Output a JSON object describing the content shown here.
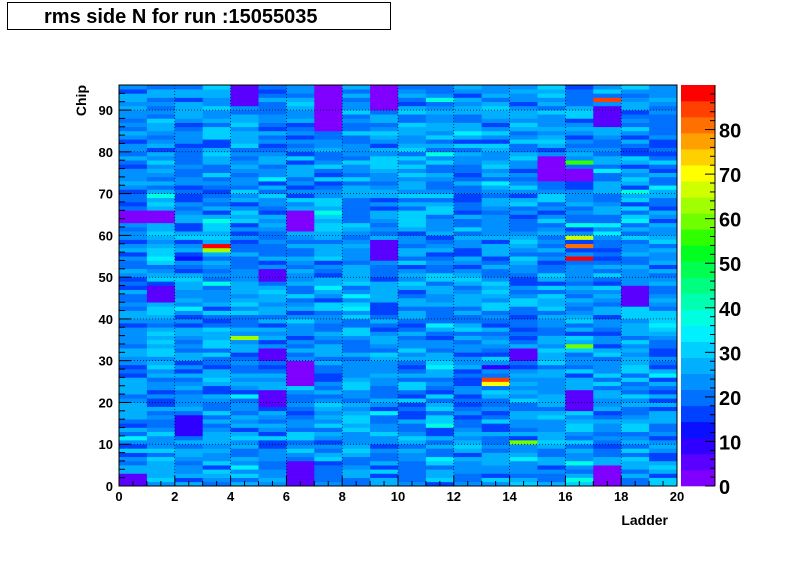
{
  "title": "rms side N for run :15055035",
  "chart_data": {
    "type": "heatmap",
    "title": "rms side N for run :15055035",
    "xlabel": "Ladder",
    "ylabel": "Chip",
    "xlim": [
      0,
      20
    ],
    "ylim": [
      0,
      96
    ],
    "x_bins": 20,
    "y_bins": 96,
    "x_ticks": [
      0,
      2,
      4,
      6,
      8,
      10,
      12,
      14,
      16,
      18,
      20
    ],
    "y_ticks": [
      0,
      10,
      20,
      30,
      40,
      50,
      60,
      70,
      80,
      90
    ],
    "colorbar_ticks": [
      0,
      10,
      20,
      30,
      40,
      50,
      60,
      70,
      80
    ],
    "z_range": [
      0,
      90
    ],
    "grid": true,
    "palette": [
      "#7f00ff",
      "#5a00ff",
      "#2f00ff",
      "#0a10ff",
      "#0040ff",
      "#0070ff",
      "#0090ff",
      "#00b0ff",
      "#00d0ff",
      "#00f0ff",
      "#00ffe0",
      "#00ffb0",
      "#00ff80",
      "#00ff50",
      "#00ff20",
      "#30ff00",
      "#70ff00",
      "#a0ff00",
      "#d0ff00",
      "#ffff00",
      "#ffd000",
      "#ffa000",
      "#ff7000",
      "#ff4000",
      "#ff0000"
    ],
    "column_base_values": [
      22,
      24,
      21,
      24,
      23,
      22,
      23,
      24,
      25,
      23,
      24,
      24,
      22,
      23,
      23,
      24,
      24,
      23,
      24,
      23
    ],
    "low_regions": [
      {
        "ladder_from": 0,
        "ladder_to": 1,
        "chip_from": 0,
        "chip_to": 3,
        "value": 4
      },
      {
        "ladder_from": 0,
        "ladder_to": 2,
        "chip_from": 63,
        "chip_to": 66,
        "value": 3
      },
      {
        "ladder_from": 1,
        "ladder_to": 2,
        "chip_from": 44,
        "chip_to": 48,
        "value": 5
      },
      {
        "ladder_from": 2,
        "ladder_to": 3,
        "chip_from": 12,
        "chip_to": 17,
        "value": 8
      },
      {
        "ladder_from": 4,
        "ladder_to": 5,
        "chip_from": 91,
        "chip_to": 96,
        "value": 6
      },
      {
        "ladder_from": 5,
        "ladder_to": 6,
        "chip_from": 19,
        "chip_to": 23,
        "value": 4
      },
      {
        "ladder_from": 5,
        "ladder_to": 6,
        "chip_from": 49,
        "chip_to": 52,
        "value": 4
      },
      {
        "ladder_from": 5,
        "ladder_to": 6,
        "chip_from": 30,
        "chip_to": 33,
        "value": 6
      },
      {
        "ladder_from": 6,
        "ladder_to": 7,
        "chip_from": 61,
        "chip_to": 66,
        "value": 3
      },
      {
        "ladder_from": 6,
        "ladder_to": 7,
        "chip_from": 24,
        "chip_to": 30,
        "value": 3
      },
      {
        "ladder_from": 6,
        "ladder_to": 7,
        "chip_from": 0,
        "chip_to": 6,
        "value": 4
      },
      {
        "ladder_from": 7,
        "ladder_to": 8,
        "chip_from": 85,
        "chip_to": 96,
        "value": 2
      },
      {
        "ladder_from": 9,
        "ladder_to": 10,
        "chip_from": 90,
        "chip_to": 96,
        "value": 3
      },
      {
        "ladder_from": 9,
        "ladder_to": 10,
        "chip_from": 54,
        "chip_to": 59,
        "value": 4
      },
      {
        "ladder_from": 15,
        "ladder_to": 16,
        "chip_from": 73,
        "chip_to": 79,
        "value": 3
      },
      {
        "ladder_from": 16,
        "ladder_to": 17,
        "chip_from": 73,
        "chip_to": 76,
        "value": 3
      },
      {
        "ladder_from": 16,
        "ladder_to": 17,
        "chip_from": 18,
        "chip_to": 23,
        "value": 4
      },
      {
        "ladder_from": 17,
        "ladder_to": 18,
        "chip_from": 86,
        "chip_to": 91,
        "value": 4
      },
      {
        "ladder_from": 17,
        "ladder_to": 18,
        "chip_from": 0,
        "chip_to": 5,
        "value": 3
      },
      {
        "ladder_from": 18,
        "ladder_to": 19,
        "chip_from": 43,
        "chip_to": 48,
        "value": 5
      },
      {
        "ladder_from": 14,
        "ladder_to": 15,
        "chip_from": 30,
        "chip_to": 33,
        "value": 6
      }
    ],
    "hot_cells": [
      {
        "ladder": 3,
        "chip": 57,
        "value": 88
      },
      {
        "ladder": 3,
        "chip": 56,
        "value": 62
      },
      {
        "ladder": 16,
        "chip": 54,
        "value": 88
      },
      {
        "ladder": 16,
        "chip": 57,
        "value": 82
      },
      {
        "ladder": 16,
        "chip": 59,
        "value": 66
      },
      {
        "ladder": 17,
        "chip": 92,
        "value": 86
      },
      {
        "ladder": 13,
        "chip": 25,
        "value": 84
      },
      {
        "ladder": 13,
        "chip": 24,
        "value": 70
      },
      {
        "ladder": 14,
        "chip": 10,
        "value": 60
      },
      {
        "ladder": 16,
        "chip": 33,
        "value": 58
      },
      {
        "ladder": 16,
        "chip": 77,
        "value": 56
      },
      {
        "ladder": 4,
        "chip": 35,
        "value": 62
      },
      {
        "ladder": 13,
        "chip": 28,
        "value": 8
      }
    ]
  }
}
